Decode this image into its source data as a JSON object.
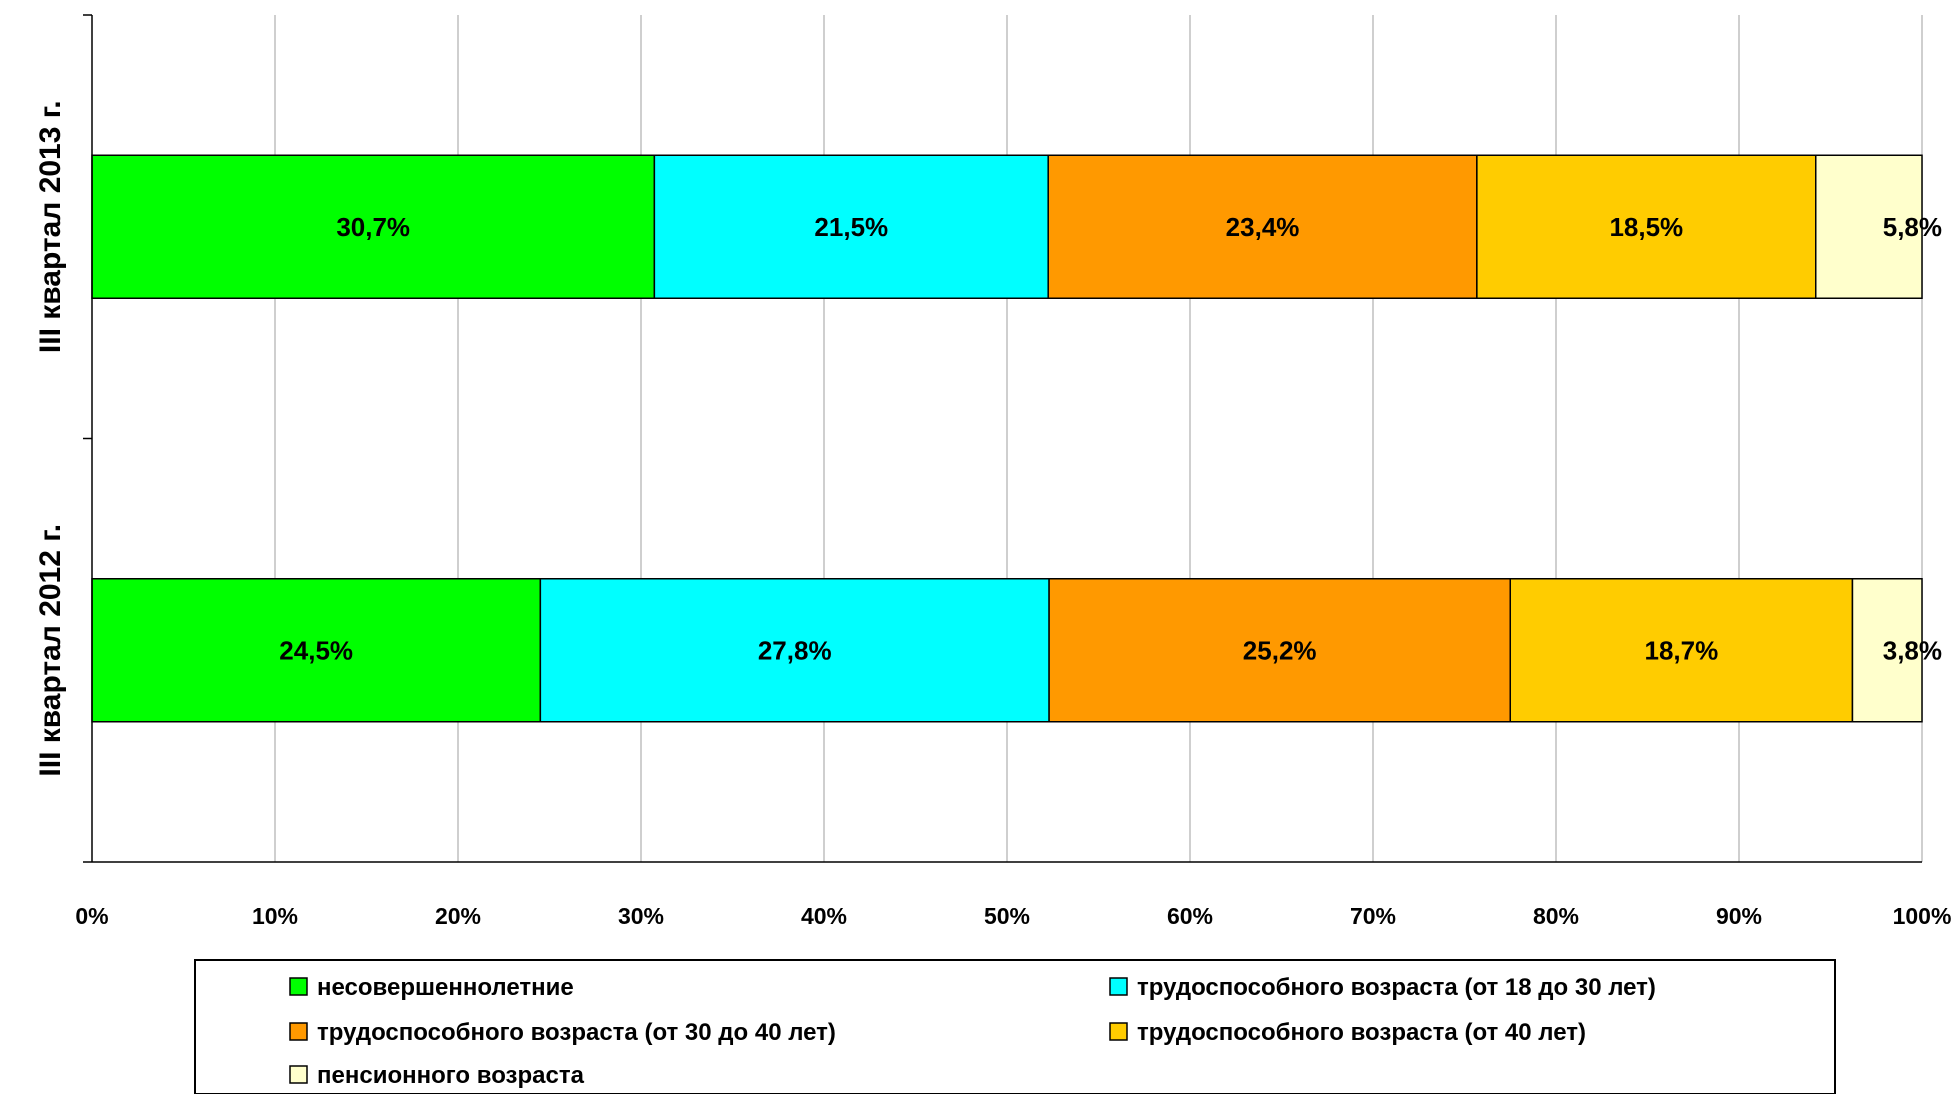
{
  "chart_data": {
    "type": "bar",
    "orientation": "horizontal",
    "stacked": true,
    "percent_stacked": true,
    "categories": [
      "III квартал 2012 г.",
      "III квартал 2013 г."
    ],
    "series": [
      {
        "name": "несовершеннолетние",
        "values": [
          24.5,
          30.7
        ],
        "labels": [
          "24,5%",
          "30,7%"
        ],
        "color": "#00FF00"
      },
      {
        "name": "трудоспособного возраста (от 18 до 30 лет)",
        "values": [
          27.8,
          21.5
        ],
        "labels": [
          "27,8%",
          "21,5%"
        ],
        "color": "#00FFFF"
      },
      {
        "name": "трудоспособного возраста (от 30 до 40 лет)",
        "values": [
          25.2,
          23.4
        ],
        "labels": [
          "25,2%",
          "23,4%"
        ],
        "color": "#FF9900"
      },
      {
        "name": "трудоспособного возраста (от 40 лет)",
        "values": [
          18.7,
          18.5
        ],
        "labels": [
          "18,7%",
          "18,5%"
        ],
        "color": "#FFCC00"
      },
      {
        "name": "пенсионного возраста",
        "values": [
          3.8,
          5.8
        ],
        "labels": [
          "3,8%",
          "5,8%"
        ],
        "color": "#FFFFCC"
      }
    ],
    "x_ticks": [
      "0%",
      "10%",
      "20%",
      "30%",
      "40%",
      "50%",
      "60%",
      "70%",
      "80%",
      "90%",
      "100%"
    ],
    "xlim": [
      0,
      100
    ],
    "grid": "vertical",
    "legend_position": "bottom",
    "title": "",
    "xlabel": "",
    "ylabel": ""
  }
}
